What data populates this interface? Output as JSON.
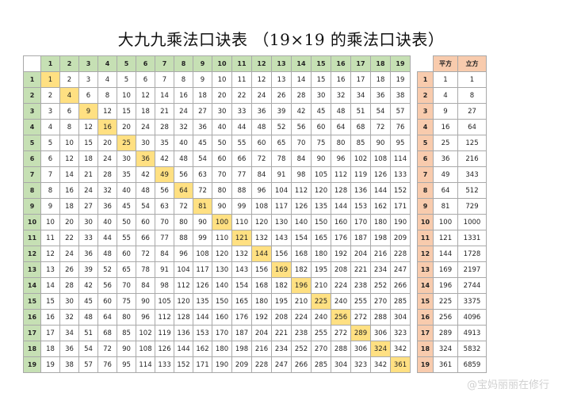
{
  "title": "大九九乘法口诀表 （19×19 的乘法口诀表）",
  "n": 19,
  "header_square": "平方",
  "header_cube": "立方",
  "watermark": "@宝妈丽丽在修行",
  "colors": {
    "header": "#c6e0b4",
    "diagonal": "#ffe082",
    "side": "#f8cbad"
  }
}
